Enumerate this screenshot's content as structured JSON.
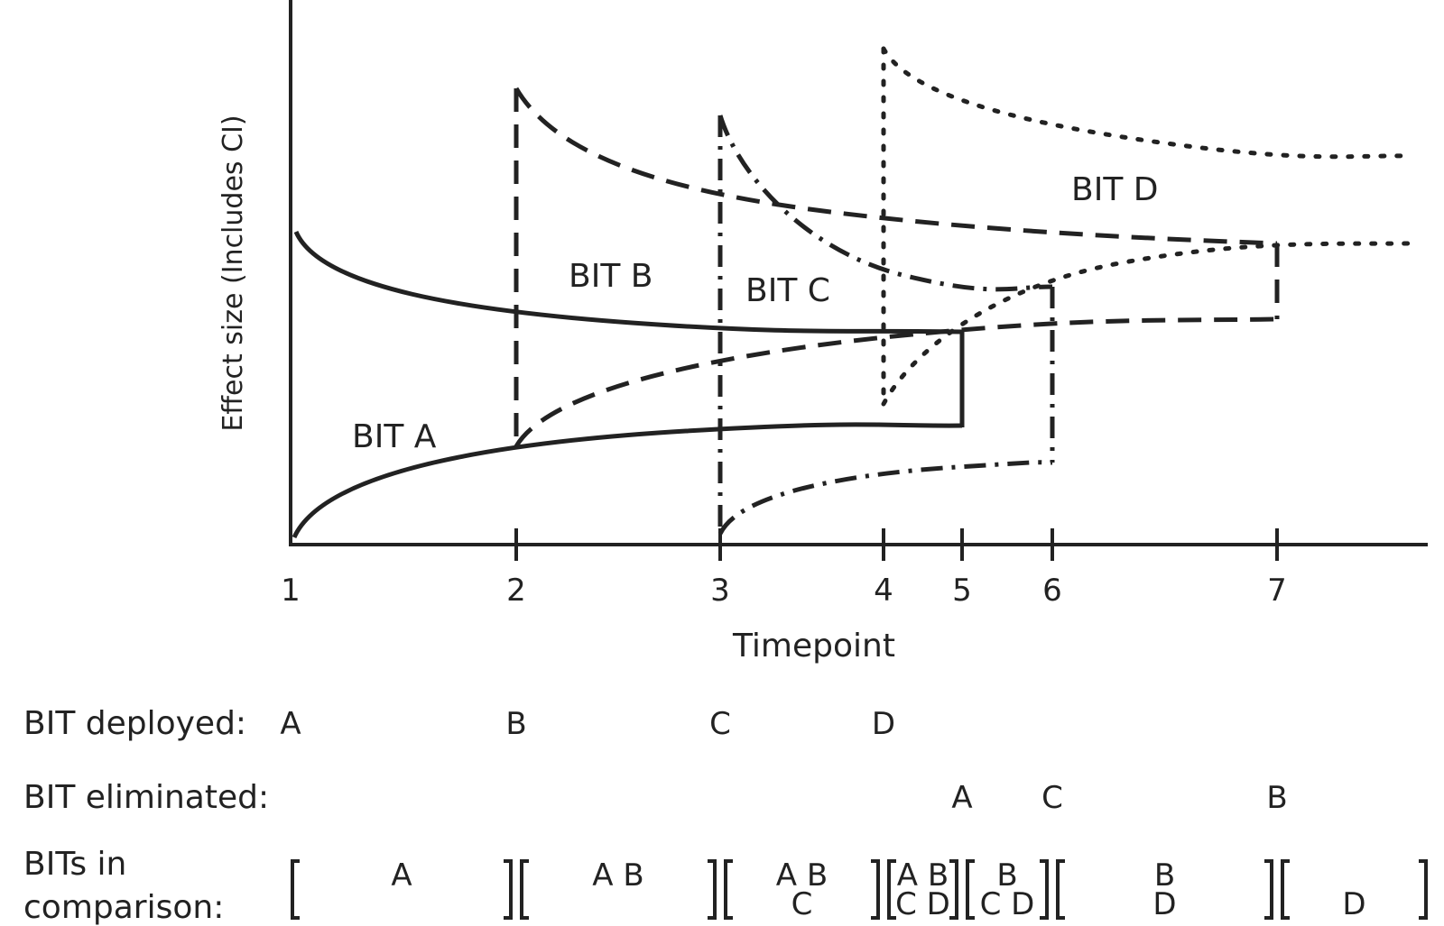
{
  "chart_data": {
    "type": "line",
    "title": "",
    "xlabel": "Timepoint",
    "ylabel": "Effect size (Includes CI)",
    "x_ticks": [
      "1",
      "2",
      "3",
      "4",
      "5",
      "6",
      "7"
    ],
    "series": [
      {
        "name": "BIT A",
        "style": "solid",
        "start_timepoint": 1,
        "end_timepoint": 5
      },
      {
        "name": "BIT B",
        "style": "dashed",
        "start_timepoint": 2,
        "end_timepoint": 7
      },
      {
        "name": "BIT C",
        "style": "dash-dot",
        "start_timepoint": 3,
        "end_timepoint": 6
      },
      {
        "name": "BIT D",
        "style": "dotted",
        "start_timepoint": 4,
        "end_timepoint": null
      }
    ]
  },
  "table": {
    "deployed": {
      "label": "BIT deployed:",
      "entries": [
        {
          "timepoint": "1",
          "bit": "A"
        },
        {
          "timepoint": "2",
          "bit": "B"
        },
        {
          "timepoint": "3",
          "bit": "C"
        },
        {
          "timepoint": "4",
          "bit": "D"
        }
      ]
    },
    "eliminated": {
      "label": "BIT eliminated:",
      "entries": [
        {
          "timepoint": "5",
          "bit": "A"
        },
        {
          "timepoint": "6",
          "bit": "C"
        },
        {
          "timepoint": "7",
          "bit": "B"
        }
      ]
    },
    "comparison": {
      "label_line1": "BITs in",
      "label_line2": "comparison:",
      "intervals": [
        {
          "from": "1",
          "to": "2",
          "lines": [
            "A"
          ]
        },
        {
          "from": "2",
          "to": "3",
          "lines": [
            "A B"
          ]
        },
        {
          "from": "3",
          "to": "4",
          "lines": [
            "A B",
            "C"
          ]
        },
        {
          "from": "4",
          "to": "5",
          "lines": [
            "A B",
            "C D"
          ]
        },
        {
          "from": "5",
          "to": "6",
          "lines": [
            "B",
            "C D"
          ]
        },
        {
          "from": "6",
          "to": "7",
          "lines": [
            "B",
            "D"
          ]
        },
        {
          "from": "7",
          "to": "end",
          "lines": [
            "",
            "D"
          ]
        }
      ]
    }
  }
}
